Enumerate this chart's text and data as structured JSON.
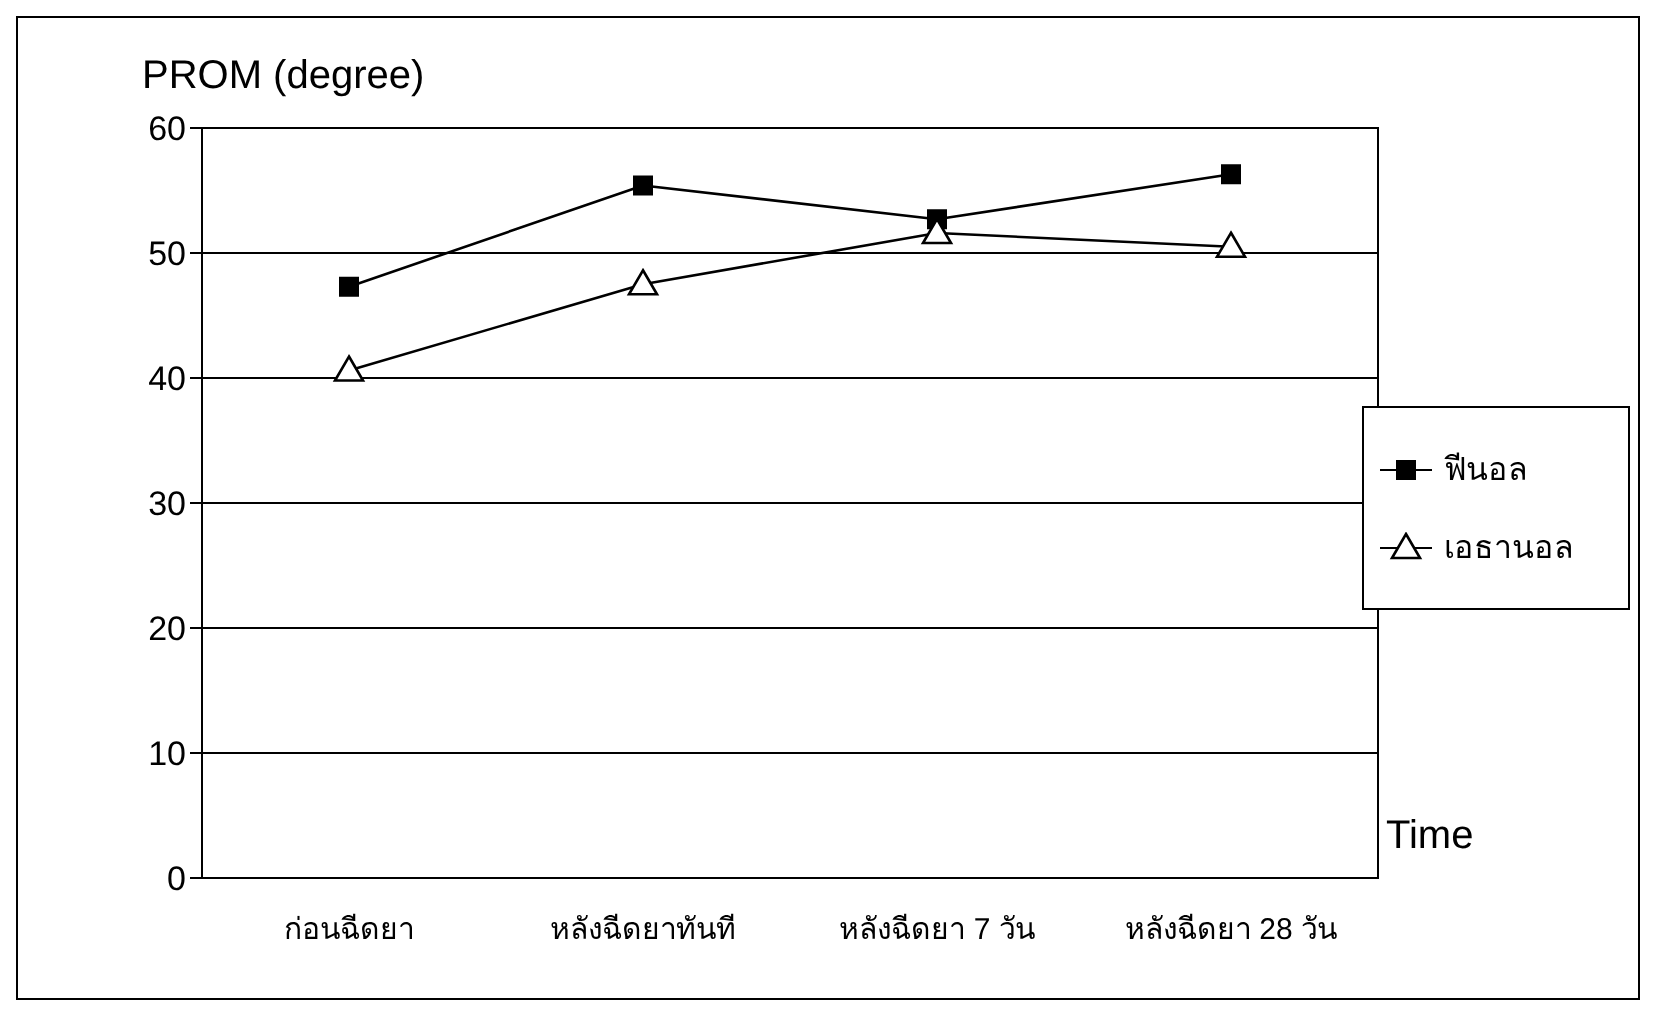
{
  "chart_data": {
    "type": "line",
    "ylabel": "PROM (degree)",
    "xlabel": "Time",
    "categories": [
      "ก่อนฉีดยา",
      "หลังฉีดยาทันที",
      "หลังฉีดยา 7 วัน",
      "หลังฉีดยา 28 วัน"
    ],
    "series": [
      {
        "name": "ฟีนอล",
        "color": "#000000",
        "marker": "square",
        "values": [
          47.3,
          55.4,
          52.7,
          56.3
        ]
      },
      {
        "name": "เอธานอล",
        "color": "#000000",
        "marker": "triangle",
        "values": [
          40.6,
          47.5,
          51.6,
          50.5
        ]
      }
    ],
    "ylim": [
      0,
      60
    ],
    "yticks": [
      0,
      10,
      20,
      30,
      40,
      50,
      60
    ],
    "grid": "y",
    "legend": "right",
    "line_style": "solid"
  }
}
